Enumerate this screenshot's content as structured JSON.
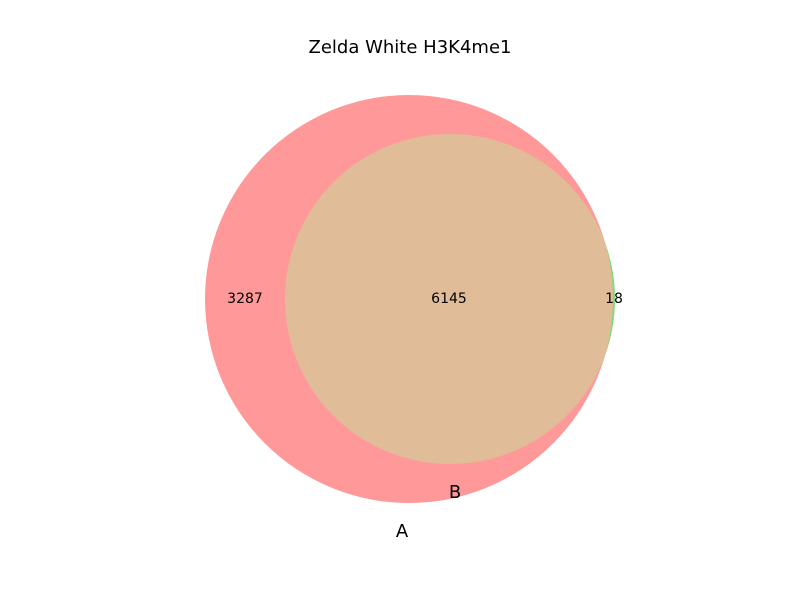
{
  "title": "Zelda White H3K4me1",
  "sets": {
    "a": {
      "label": "A",
      "color": "#ff9999"
    },
    "b": {
      "label": "B",
      "color": "#77dd77"
    }
  },
  "regions": {
    "a_only": "3287",
    "a_and_b": "6145",
    "b_only": "18"
  },
  "colors": {
    "overlap": "#e0bc98",
    "background": "#ffffff"
  }
}
